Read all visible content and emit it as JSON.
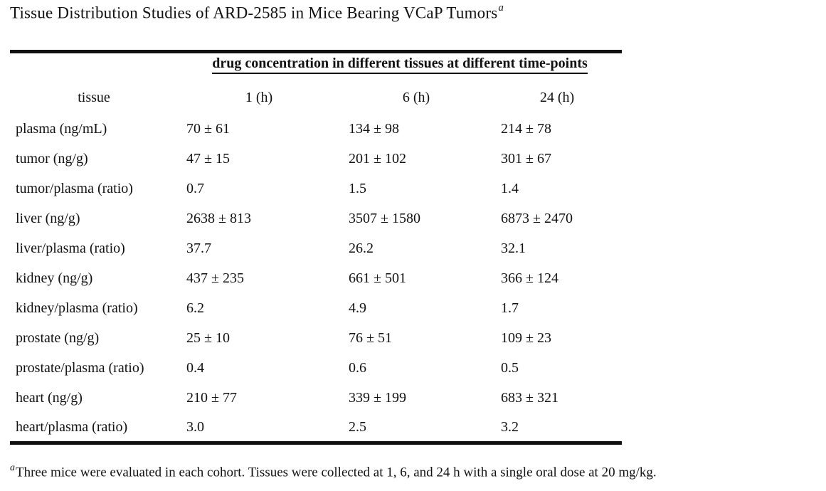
{
  "title": {
    "text": "Tissue Distribution Studies of ARD-2585 in Mice Bearing VCaP Tumors",
    "superscript": "a"
  },
  "table": {
    "spanning_header": "drug concentration in different tissues at different time-points",
    "columns": [
      "tissue",
      "1 (h)",
      "6 (h)",
      "24 (h)"
    ],
    "rows": [
      {
        "tissue": "plasma (ng/mL)",
        "values": [
          "70 ± 61",
          "134 ± 98",
          "214 ± 78"
        ]
      },
      {
        "tissue": "tumor (ng/g)",
        "values": [
          "47 ± 15",
          "201 ± 102",
          "301 ± 67"
        ]
      },
      {
        "tissue": "tumor/plasma (ratio)",
        "values": [
          "0.7",
          "1.5",
          "1.4"
        ]
      },
      {
        "tissue": "liver (ng/g)",
        "values": [
          "2638 ± 813",
          "3507 ± 1580",
          "6873 ± 2470"
        ]
      },
      {
        "tissue": "liver/plasma (ratio)",
        "values": [
          "37.7",
          "26.2",
          "32.1"
        ]
      },
      {
        "tissue": "kidney (ng/g)",
        "values": [
          "437 ± 235",
          "661 ± 501",
          "366 ± 124"
        ]
      },
      {
        "tissue": "kidney/plasma (ratio)",
        "values": [
          "6.2",
          "4.9",
          "1.7"
        ]
      },
      {
        "tissue": "prostate (ng/g)",
        "values": [
          "25 ± 10",
          "76 ± 51",
          "109 ± 23"
        ]
      },
      {
        "tissue": "prostate/plasma (ratio)",
        "values": [
          "0.4",
          "0.6",
          "0.5"
        ]
      },
      {
        "tissue": "heart (ng/g)",
        "values": [
          "210 ± 77",
          "339 ± 199",
          "683 ± 321"
        ]
      },
      {
        "tissue": "heart/plasma (ratio)",
        "values": [
          "3.0",
          "2.5",
          "3.2"
        ]
      }
    ]
  },
  "footnote": {
    "marker": "a",
    "text": "Three mice were evaluated in each cohort. Tissues were collected at 1, 6, and 24 h with a single oral dose at 20 mg/kg."
  },
  "chart_data": {
    "type": "table",
    "title": "Tissue Distribution Studies of ARD-2585 in Mice Bearing VCaP Tumors",
    "columns": [
      "tissue",
      "1 (h)",
      "6 (h)",
      "24 (h)"
    ],
    "rows": [
      [
        "plasma (ng/mL)",
        "70 ± 61",
        "134 ± 98",
        "214 ± 78"
      ],
      [
        "tumor (ng/g)",
        "47 ± 15",
        "201 ± 102",
        "301 ± 67"
      ],
      [
        "tumor/plasma (ratio)",
        "0.7",
        "1.5",
        "1.4"
      ],
      [
        "liver (ng/g)",
        "2638 ± 813",
        "3507 ± 1580",
        "6873 ± 2470"
      ],
      [
        "liver/plasma (ratio)",
        "37.7",
        "26.2",
        "32.1"
      ],
      [
        "kidney (ng/g)",
        "437 ± 235",
        "661 ± 501",
        "366 ± 124"
      ],
      [
        "kidney/plasma (ratio)",
        "6.2",
        "4.9",
        "1.7"
      ],
      [
        "prostate (ng/g)",
        "25 ± 10",
        "76 ± 51",
        "109 ± 23"
      ],
      [
        "prostate/plasma (ratio)",
        "0.4",
        "0.6",
        "0.5"
      ],
      [
        "heart (ng/g)",
        "210 ± 77",
        "339 ± 199",
        "683 ± 321"
      ],
      [
        "heart/plasma (ratio)",
        "3.0",
        "2.5",
        "3.2"
      ]
    ]
  },
  "colors": {
    "text": "#121212",
    "rule": "#101010",
    "background": "#ffffff"
  }
}
